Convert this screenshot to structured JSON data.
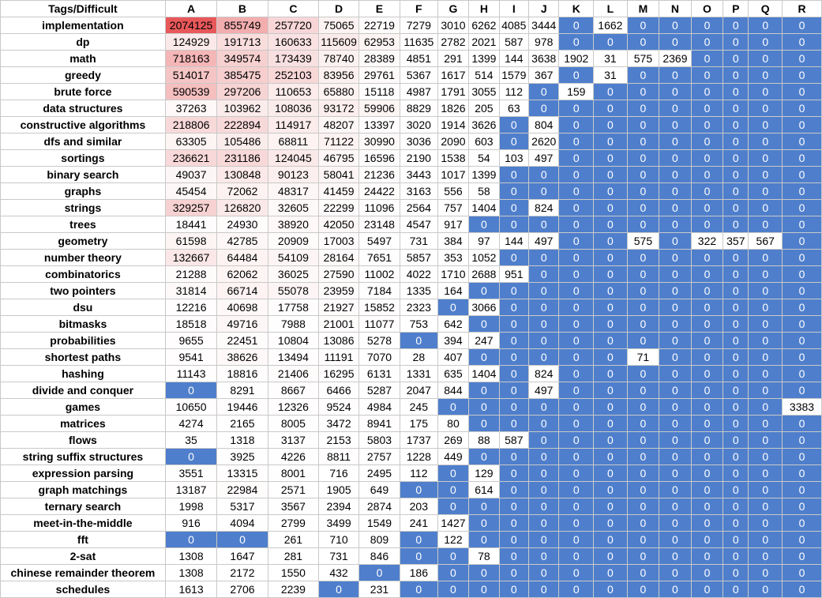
{
  "chart_data": {
    "type": "heatmap",
    "corner_label": "Tags/Difficult",
    "columns": [
      "A",
      "B",
      "C",
      "D",
      "E",
      "F",
      "G",
      "H",
      "I",
      "J",
      "K",
      "L",
      "M",
      "N",
      "O",
      "P",
      "Q",
      "R"
    ],
    "colors": {
      "zero": "#4f7fcc",
      "high": "#e8585a",
      "mid": "#f8dada",
      "low": "#ffffff"
    },
    "rows": [
      {
        "tag": "implementation",
        "values": [
          2074125,
          855749,
          257720,
          75065,
          22719,
          7279,
          3010,
          6262,
          4085,
          3444,
          0,
          1662,
          0,
          0,
          0,
          0,
          0,
          0
        ]
      },
      {
        "tag": "dp",
        "values": [
          124929,
          191713,
          160633,
          115609,
          62953,
          11635,
          2782,
          2021,
          587,
          978,
          0,
          0,
          0,
          0,
          0,
          0,
          0,
          0
        ]
      },
      {
        "tag": "math",
        "values": [
          718163,
          349574,
          173439,
          78740,
          28389,
          4851,
          291,
          1399,
          144,
          3638,
          1902,
          31,
          575,
          2369,
          0,
          0,
          0,
          0
        ]
      },
      {
        "tag": "greedy",
        "values": [
          514017,
          385475,
          252103,
          83956,
          29761,
          5367,
          1617,
          514,
          1579,
          367,
          0,
          31,
          0,
          0,
          0,
          0,
          0,
          0
        ]
      },
      {
        "tag": "brute force",
        "values": [
          590539,
          297206,
          110653,
          65880,
          15118,
          4987,
          1791,
          3055,
          112,
          0,
          159,
          0,
          0,
          0,
          0,
          0,
          0,
          0
        ]
      },
      {
        "tag": "data structures",
        "values": [
          37263,
          103962,
          108036,
          93172,
          59906,
          8829,
          1826,
          205,
          63,
          0,
          0,
          0,
          0,
          0,
          0,
          0,
          0,
          0
        ]
      },
      {
        "tag": "constructive algorithms",
        "values": [
          218806,
          222894,
          114917,
          48207,
          13397,
          3020,
          1914,
          3626,
          0,
          804,
          0,
          0,
          0,
          0,
          0,
          0,
          0,
          0
        ]
      },
      {
        "tag": "dfs and similar",
        "values": [
          63305,
          105486,
          68811,
          71122,
          30990,
          3036,
          2090,
          603,
          0,
          2620,
          0,
          0,
          0,
          0,
          0,
          0,
          0,
          0
        ]
      },
      {
        "tag": "sortings",
        "values": [
          236621,
          231186,
          124045,
          46795,
          16596,
          2190,
          1538,
          54,
          103,
          497,
          0,
          0,
          0,
          0,
          0,
          0,
          0,
          0
        ]
      },
      {
        "tag": "binary search",
        "values": [
          49037,
          130848,
          90123,
          58041,
          21236,
          3443,
          1017,
          1399,
          0,
          0,
          0,
          0,
          0,
          0,
          0,
          0,
          0,
          0
        ]
      },
      {
        "tag": "graphs",
        "values": [
          45454,
          72062,
          48317,
          41459,
          24422,
          3163,
          556,
          58,
          0,
          0,
          0,
          0,
          0,
          0,
          0,
          0,
          0,
          0
        ]
      },
      {
        "tag": "strings",
        "values": [
          329257,
          126820,
          32605,
          22299,
          11096,
          2564,
          757,
          1404,
          0,
          824,
          0,
          0,
          0,
          0,
          0,
          0,
          0,
          0
        ]
      },
      {
        "tag": "trees",
        "values": [
          18441,
          24930,
          38920,
          42050,
          23148,
          4547,
          917,
          0,
          0,
          0,
          0,
          0,
          0,
          0,
          0,
          0,
          0,
          0
        ]
      },
      {
        "tag": "geometry",
        "values": [
          61598,
          42785,
          20909,
          17003,
          5497,
          731,
          384,
          97,
          144,
          497,
          0,
          0,
          575,
          0,
          322,
          357,
          567,
          0
        ]
      },
      {
        "tag": "number theory",
        "values": [
          132667,
          64484,
          54109,
          28164,
          7651,
          5857,
          353,
          1052,
          0,
          0,
          0,
          0,
          0,
          0,
          0,
          0,
          0,
          0
        ]
      },
      {
        "tag": "combinatorics",
        "values": [
          21288,
          62062,
          36025,
          27590,
          11002,
          4022,
          1710,
          2688,
          951,
          0,
          0,
          0,
          0,
          0,
          0,
          0,
          0,
          0
        ]
      },
      {
        "tag": "two pointers",
        "values": [
          31814,
          66714,
          55078,
          23959,
          7184,
          1335,
          164,
          0,
          0,
          0,
          0,
          0,
          0,
          0,
          0,
          0,
          0,
          0
        ]
      },
      {
        "tag": "dsu",
        "values": [
          12216,
          40698,
          17758,
          21927,
          15852,
          2323,
          0,
          3066,
          0,
          0,
          0,
          0,
          0,
          0,
          0,
          0,
          0,
          0
        ]
      },
      {
        "tag": "bitmasks",
        "values": [
          18518,
          49716,
          7988,
          21001,
          11077,
          753,
          642,
          0,
          0,
          0,
          0,
          0,
          0,
          0,
          0,
          0,
          0,
          0
        ]
      },
      {
        "tag": "probabilities",
        "values": [
          9655,
          22451,
          10804,
          13086,
          5278,
          0,
          394,
          247,
          0,
          0,
          0,
          0,
          0,
          0,
          0,
          0,
          0,
          0
        ]
      },
      {
        "tag": "shortest paths",
        "values": [
          9541,
          38626,
          13494,
          11191,
          7070,
          28,
          407,
          0,
          0,
          0,
          0,
          0,
          71,
          0,
          0,
          0,
          0,
          0
        ]
      },
      {
        "tag": "hashing",
        "values": [
          11143,
          18816,
          21406,
          16295,
          6131,
          1331,
          635,
          1404,
          0,
          824,
          0,
          0,
          0,
          0,
          0,
          0,
          0,
          0
        ]
      },
      {
        "tag": "divide and conquer",
        "values": [
          0,
          8291,
          8667,
          6466,
          5287,
          2047,
          844,
          0,
          0,
          497,
          0,
          0,
          0,
          0,
          0,
          0,
          0,
          0
        ]
      },
      {
        "tag": "games",
        "values": [
          10650,
          19446,
          12326,
          9524,
          4984,
          245,
          0,
          0,
          0,
          0,
          0,
          0,
          0,
          0,
          0,
          0,
          0,
          3383
        ]
      },
      {
        "tag": "matrices",
        "values": [
          4274,
          2165,
          8005,
          3472,
          8941,
          175,
          80,
          0,
          0,
          0,
          0,
          0,
          0,
          0,
          0,
          0,
          0,
          0
        ]
      },
      {
        "tag": "flows",
        "values": [
          35,
          1318,
          3137,
          2153,
          5803,
          1737,
          269,
          88,
          587,
          0,
          0,
          0,
          0,
          0,
          0,
          0,
          0,
          0
        ]
      },
      {
        "tag": "string suffix structures",
        "values": [
          0,
          3925,
          4226,
          8811,
          2757,
          1228,
          449,
          0,
          0,
          0,
          0,
          0,
          0,
          0,
          0,
          0,
          0,
          0
        ]
      },
      {
        "tag": "expression parsing",
        "values": [
          3551,
          13315,
          8001,
          716,
          2495,
          112,
          0,
          129,
          0,
          0,
          0,
          0,
          0,
          0,
          0,
          0,
          0,
          0
        ]
      },
      {
        "tag": "graph matchings",
        "values": [
          13187,
          22984,
          2571,
          1905,
          649,
          0,
          0,
          614,
          0,
          0,
          0,
          0,
          0,
          0,
          0,
          0,
          0,
          0
        ]
      },
      {
        "tag": "ternary search",
        "values": [
          1998,
          5317,
          3567,
          2394,
          2874,
          203,
          0,
          0,
          0,
          0,
          0,
          0,
          0,
          0,
          0,
          0,
          0,
          0
        ]
      },
      {
        "tag": "meet-in-the-middle",
        "values": [
          916,
          4094,
          2799,
          3499,
          1549,
          241,
          1427,
          0,
          0,
          0,
          0,
          0,
          0,
          0,
          0,
          0,
          0,
          0
        ]
      },
      {
        "tag": "fft",
        "values": [
          0,
          0,
          261,
          710,
          809,
          0,
          122,
          0,
          0,
          0,
          0,
          0,
          0,
          0,
          0,
          0,
          0,
          0
        ]
      },
      {
        "tag": "2-sat",
        "values": [
          1308,
          1647,
          281,
          731,
          846,
          0,
          0,
          78,
          0,
          0,
          0,
          0,
          0,
          0,
          0,
          0,
          0,
          0
        ]
      },
      {
        "tag": "chinese remainder theorem",
        "values": [
          1308,
          2172,
          1550,
          432,
          0,
          186,
          0,
          0,
          0,
          0,
          0,
          0,
          0,
          0,
          0,
          0,
          0,
          0
        ]
      },
      {
        "tag": "schedules",
        "values": [
          1613,
          2706,
          2239,
          0,
          231,
          0,
          0,
          0,
          0,
          0,
          0,
          0,
          0,
          0,
          0,
          0,
          0,
          0
        ]
      }
    ]
  }
}
